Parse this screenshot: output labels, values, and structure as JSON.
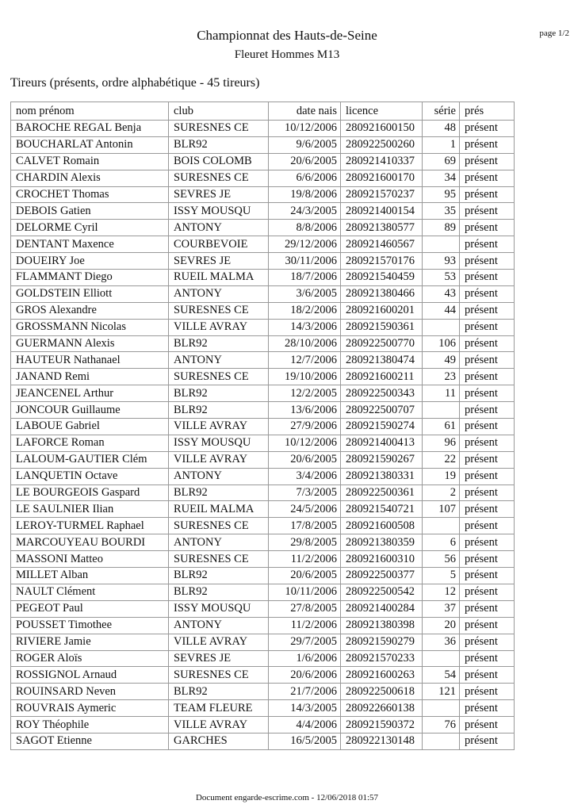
{
  "header": {
    "title": "Championnat des Hauts-de-Seine",
    "subtitle": "Fleuret Hommes M13",
    "page": "page 1/2"
  },
  "section_title": "Tireurs (présents, ordre alphabétique - 45 tireurs)",
  "table": {
    "columns": [
      "nom prénom",
      "club",
      "date nais",
      "licence",
      "série",
      "prés"
    ],
    "rows": [
      [
        "BAROCHE REGAL Benja",
        "SURESNES CE",
        "10/12/2006",
        "280921600150",
        "48",
        "présent"
      ],
      [
        "BOUCHARLAT Antonin",
        "BLR92",
        "9/6/2005",
        "280922500260",
        "1",
        "présent"
      ],
      [
        "CALVET Romain",
        "BOIS COLOMB",
        "20/6/2005",
        "280921410337",
        "69",
        "présent"
      ],
      [
        "CHARDIN Alexis",
        "SURESNES CE",
        "6/6/2006",
        "280921600170",
        "34",
        "présent"
      ],
      [
        "CROCHET Thomas",
        "SEVRES JE",
        "19/8/2006",
        "280921570237",
        "95",
        "présent"
      ],
      [
        "DEBOIS Gatien",
        "ISSY MOUSQU",
        "24/3/2005",
        "280921400154",
        "35",
        "présent"
      ],
      [
        "DELORME Cyril",
        "ANTONY",
        "8/8/2006",
        "280921380577",
        "89",
        "présent"
      ],
      [
        "DENTANT Maxence",
        "COURBEVOIE",
        "29/12/2006",
        "280921460567",
        "",
        "présent"
      ],
      [
        "DOUEIRY Joe",
        "SEVRES JE",
        "30/11/2006",
        "280921570176",
        "93",
        "présent"
      ],
      [
        "FLAMMANT Diego",
        "RUEIL MALMA",
        "18/7/2006",
        "280921540459",
        "53",
        "présent"
      ],
      [
        "GOLDSTEIN Elliott",
        "ANTONY",
        "3/6/2005",
        "280921380466",
        "43",
        "présent"
      ],
      [
        "GROS Alexandre",
        "SURESNES CE",
        "18/2/2006",
        "280921600201",
        "44",
        "présent"
      ],
      [
        "GROSSMANN Nicolas",
        "VILLE AVRAY",
        "14/3/2006",
        "280921590361",
        "",
        "présent"
      ],
      [
        "GUERMANN Alexis",
        "BLR92",
        "28/10/2006",
        "280922500770",
        "106",
        "présent"
      ],
      [
        "HAUTEUR Nathanael",
        "ANTONY",
        "12/7/2006",
        "280921380474",
        "49",
        "présent"
      ],
      [
        "JANAND Remi",
        "SURESNES CE",
        "19/10/2006",
        "280921600211",
        "23",
        "présent"
      ],
      [
        "JEANCENEL Arthur",
        "BLR92",
        "12/2/2005",
        "280922500343",
        "11",
        "présent"
      ],
      [
        "JONCOUR Guillaume",
        "BLR92",
        "13/6/2006",
        "280922500707",
        "",
        "présent"
      ],
      [
        "LABOUE Gabriel",
        "VILLE AVRAY",
        "27/9/2006",
        "280921590274",
        "61",
        "présent"
      ],
      [
        "LAFORCE Roman",
        "ISSY MOUSQU",
        "10/12/2006",
        "280921400413",
        "96",
        "présent"
      ],
      [
        "LALOUM-GAUTIER Clém",
        "VILLE AVRAY",
        "20/6/2005",
        "280921590267",
        "22",
        "présent"
      ],
      [
        "LANQUETIN Octave",
        "ANTONY",
        "3/4/2006",
        "280921380331",
        "19",
        "présent"
      ],
      [
        "LE BOURGEOIS Gaspard",
        "BLR92",
        "7/3/2005",
        "280922500361",
        "2",
        "présent"
      ],
      [
        "LE SAULNIER Ilian",
        "RUEIL MALMA",
        "24/5/2006",
        "280921540721",
        "107",
        "présent"
      ],
      [
        "LEROY-TURMEL Raphael",
        "SURESNES CE",
        "17/8/2005",
        "280921600508",
        "",
        "présent"
      ],
      [
        "MARCOUYEAU BOURDI",
        "ANTONY",
        "29/8/2005",
        "280921380359",
        "6",
        "présent"
      ],
      [
        "MASSONI Matteo",
        "SURESNES CE",
        "11/2/2006",
        "280921600310",
        "56",
        "présent"
      ],
      [
        "MILLET Alban",
        "BLR92",
        "20/6/2005",
        "280922500377",
        "5",
        "présent"
      ],
      [
        "NAULT Clément",
        "BLR92",
        "10/11/2006",
        "280922500542",
        "12",
        "présent"
      ],
      [
        "PEGEOT Paul",
        "ISSY MOUSQU",
        "27/8/2005",
        "280921400284",
        "37",
        "présent"
      ],
      [
        "POUSSET Timothee",
        "ANTONY",
        "11/2/2006",
        "280921380398",
        "20",
        "présent"
      ],
      [
        "RIVIERE Jamie",
        "VILLE AVRAY",
        "29/7/2005",
        "280921590279",
        "36",
        "présent"
      ],
      [
        "ROGER Aloïs",
        "SEVRES JE",
        "1/6/2006",
        "280921570233",
        "",
        "présent"
      ],
      [
        "ROSSIGNOL Arnaud",
        "SURESNES CE",
        "20/6/2006",
        "280921600263",
        "54",
        "présent"
      ],
      [
        "ROUINSARD Neven",
        "BLR92",
        "21/7/2006",
        "280922500618",
        "121",
        "présent"
      ],
      [
        "ROUVRAIS Aymeric",
        "TEAM FLEURE",
        "14/3/2005",
        "280922660138",
        "",
        "présent"
      ],
      [
        "ROY Théophile",
        "VILLE AVRAY",
        "4/4/2006",
        "280921590372",
        "76",
        "présent"
      ],
      [
        "SAGOT Etienne",
        "GARCHES",
        "16/5/2005",
        "280922130148",
        "",
        "présent"
      ]
    ]
  },
  "footer": "Document engarde-escrime.com  - 12/06/2018 01:57"
}
